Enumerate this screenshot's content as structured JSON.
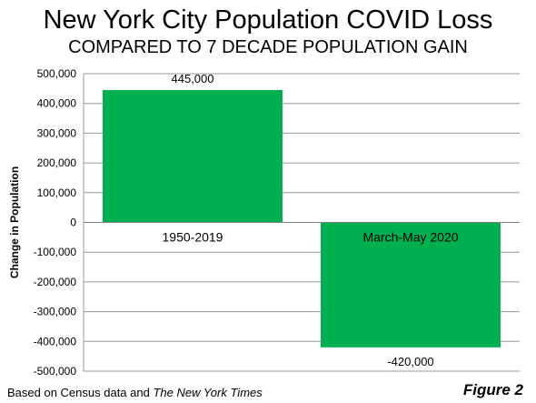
{
  "header": {
    "title": "New York City Population COVID Loss",
    "subtitle": "COMPARED TO 7 DECADE POPULATION GAIN"
  },
  "footer": {
    "source_prefix": "Based on Census data and ",
    "source_italic": "The New York Times",
    "figure_label": "Figure 2"
  },
  "chart_data": {
    "type": "bar",
    "title": "New York City Population COVID Loss",
    "subtitle": "COMPARED TO 7 DECADE POPULATION GAIN",
    "categories": [
      "1950-2019",
      "March-May 2020"
    ],
    "values": [
      445000,
      -420000
    ],
    "data_labels": [
      "445,000",
      "-420,000"
    ],
    "xlabel": "",
    "ylabel": "Change in Population",
    "ylim": [
      -500000,
      500000
    ],
    "yticks": [
      500000,
      400000,
      300000,
      200000,
      100000,
      0,
      -100000,
      -200000,
      -300000,
      -400000,
      -500000
    ],
    "ytick_labels": [
      "500,000",
      "400,000",
      "300,000",
      "200,000",
      "100,000",
      "0",
      "-100,000",
      "-200,000",
      "-300,000",
      "-400,000",
      "-500,000"
    ],
    "grid": true,
    "bar_color": "#00b050",
    "grid_color": "#999999"
  }
}
